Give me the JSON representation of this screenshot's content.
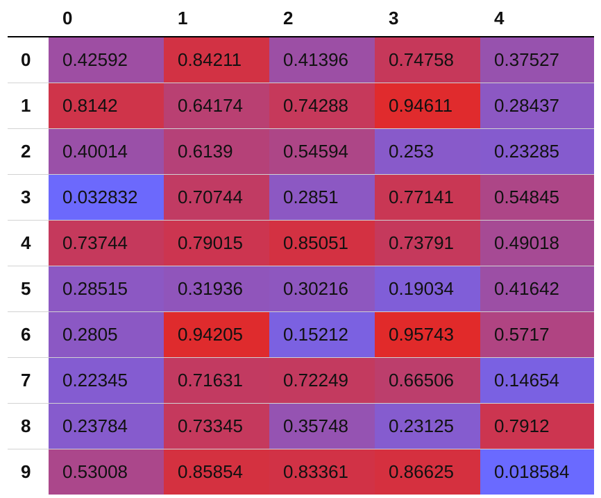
{
  "table": {
    "columns": [
      "0",
      "1",
      "2",
      "3",
      "4"
    ],
    "rows": [
      {
        "index": "0",
        "cells": [
          "0.42592",
          "0.84211",
          "0.41396",
          "0.74758",
          "0.37527"
        ]
      },
      {
        "index": "1",
        "cells": [
          "0.8142",
          "0.64174",
          "0.74288",
          "0.94611",
          "0.28437"
        ]
      },
      {
        "index": "2",
        "cells": [
          "0.40014",
          "0.6139",
          "0.54594",
          "0.253",
          "0.23285"
        ]
      },
      {
        "index": "3",
        "cells": [
          "0.032832",
          "0.70744",
          "0.2851",
          "0.77141",
          "0.54845"
        ]
      },
      {
        "index": "4",
        "cells": [
          "0.73744",
          "0.79015",
          "0.85051",
          "0.73791",
          "0.49018"
        ]
      },
      {
        "index": "5",
        "cells": [
          "0.28515",
          "0.31936",
          "0.30216",
          "0.19034",
          "0.41642"
        ]
      },
      {
        "index": "6",
        "cells": [
          "0.2805",
          "0.94205",
          "0.15212",
          "0.95743",
          "0.5717"
        ]
      },
      {
        "index": "7",
        "cells": [
          "0.22345",
          "0.71631",
          "0.72249",
          "0.66506",
          "0.14654"
        ]
      },
      {
        "index": "8",
        "cells": [
          "0.23784",
          "0.73345",
          "0.35748",
          "0.23125",
          "0.7912"
        ]
      },
      {
        "index": "9",
        "cells": [
          "0.53008",
          "0.85854",
          "0.83361",
          "0.86625",
          "0.018584"
        ]
      }
    ]
  },
  "colors": {
    "low": "#6a6aff",
    "high": "#e12a2a",
    "header_rule": "#000000",
    "row_rule": "#d2d2d2",
    "text": "#111111"
  }
}
